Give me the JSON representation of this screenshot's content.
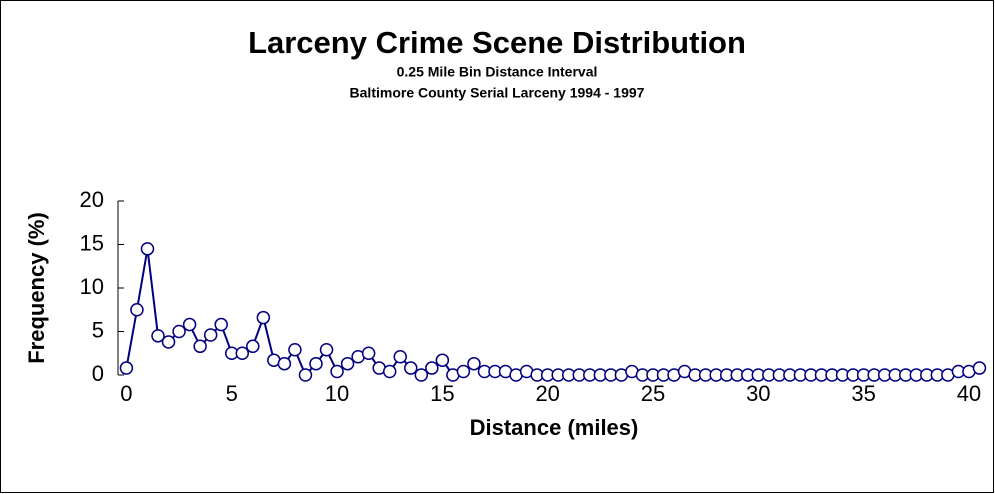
{
  "chart_data": {
    "type": "line",
    "title": "Larceny Crime Scene Distribution",
    "subtitle": [
      "0.25 Mile Bin Distance Interval",
      "Baltimore County Serial Larceny 1994 - 1997"
    ],
    "x_label": "Distance (miles)",
    "y_label": "Frequency (%)",
    "x": [
      0,
      0.5,
      1,
      1.5,
      2,
      2.5,
      3,
      3.5,
      4,
      4.5,
      5,
      5.5,
      6,
      6.5,
      7,
      7.5,
      8,
      8.5,
      9,
      9.5,
      10,
      10.5,
      11,
      11.5,
      12,
      12.5,
      13,
      13.5,
      14,
      14.5,
      15,
      15.5,
      16,
      16.5,
      17,
      17.5,
      18,
      18.5,
      19,
      19.5,
      20,
      20.5,
      21,
      21.5,
      22,
      22.5,
      23,
      23.5,
      24,
      24.5,
      25,
      25.5,
      26,
      26.5,
      27,
      27.5,
      28,
      28.5,
      29,
      29.5,
      30,
      30.5,
      31,
      31.5,
      32,
      32.5,
      33,
      33.5,
      34,
      34.5,
      35,
      35.5,
      36,
      36.5,
      37,
      37.5,
      38,
      38.5,
      39,
      39.5,
      40,
      40.5
    ],
    "series": [
      {
        "name": "Frequency",
        "color": "#000080",
        "values": [
          0.8,
          7.5,
          14.5,
          4.5,
          3.8,
          5,
          5.8,
          3.3,
          4.6,
          5.8,
          2.5,
          2.5,
          3.3,
          6.6,
          1.7,
          1.3,
          2.9,
          0,
          1.3,
          2.9,
          0.4,
          1.3,
          2.1,
          2.5,
          0.8,
          0.4,
          2.1,
          0.8,
          0,
          0.8,
          1.7,
          0,
          0.4,
          1.3,
          0.4,
          0.4,
          0.4,
          0,
          0.4,
          0,
          0,
          0,
          0,
          0,
          0,
          0,
          0,
          0,
          0.4,
          0,
          0,
          0,
          0,
          0.4,
          0,
          0,
          0,
          0,
          0,
          0,
          0,
          0,
          0,
          0,
          0,
          0,
          0,
          0,
          0,
          0,
          0,
          0,
          0,
          0,
          0,
          0,
          0,
          0,
          0,
          0.4,
          0.4,
          0.8
        ]
      }
    ],
    "xlim": [
      -0.4,
      41
    ],
    "ylim": [
      0,
      20
    ],
    "xticks": [
      0,
      5,
      10,
      15,
      20,
      25,
      30,
      35,
      40
    ],
    "yticks": [
      0,
      5,
      10,
      15,
      20
    ]
  }
}
